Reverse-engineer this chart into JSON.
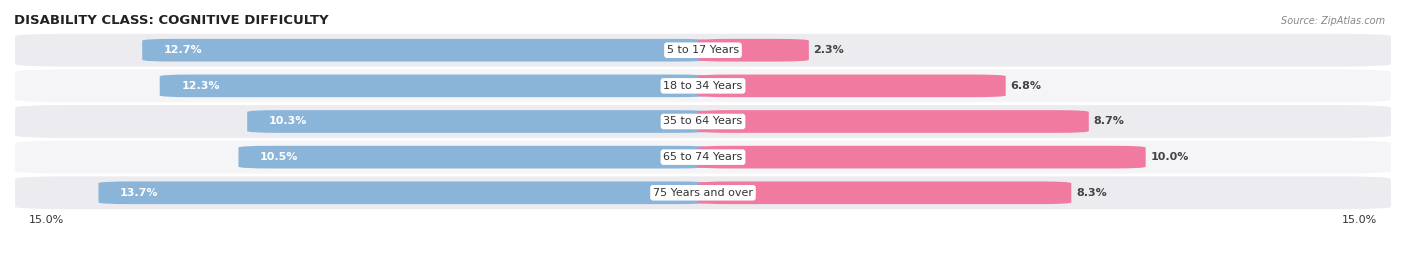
{
  "title": "DISABILITY CLASS: COGNITIVE DIFFICULTY",
  "source": "Source: ZipAtlas.com",
  "categories": [
    "5 to 17 Years",
    "18 to 34 Years",
    "35 to 64 Years",
    "65 to 74 Years",
    "75 Years and over"
  ],
  "male_values": [
    12.7,
    12.3,
    10.3,
    10.5,
    13.7
  ],
  "female_values": [
    2.3,
    6.8,
    8.7,
    10.0,
    8.3
  ],
  "male_color": "#8ab4d8",
  "female_color": "#f07aA0",
  "max_val": 15.0,
  "bar_height": 0.62,
  "row_bg_even": "#ebebf0",
  "row_bg_odd": "#f5f5f8",
  "title_fontsize": 9.5,
  "label_fontsize": 8,
  "pct_fontsize": 8,
  "tick_fontsize": 8,
  "legend_fontsize": 8
}
